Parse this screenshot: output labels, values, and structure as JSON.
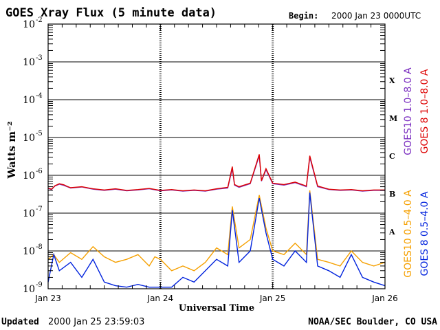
{
  "title": "GOES Xray Flux (5 minute data)",
  "begin_label": "Begin:",
  "begin_value": "2000 Jan 23 0000UTC",
  "updated_label": "Updated",
  "updated_value": "2000 Jan 25 23:59:03",
  "credit": "NOAA/SEC Boulder, CO USA",
  "colors": {
    "goes8_long": "#dd0000",
    "goes10_long": "#7b2fc0",
    "goes10_short": "#f5a000",
    "goes8_short": "#0022dd",
    "frame": "#000000"
  },
  "chart_data": {
    "type": "line",
    "title": "GOES Xray Flux (5 minute data)",
    "xlabel": "Universal Time",
    "ylabel": "Watts m⁻²",
    "yscale": "log",
    "ylim": [
      1e-09,
      0.01
    ],
    "xlim": [
      0,
      3
    ],
    "x_ticks": [
      {
        "x": 0,
        "label": "Jan 23"
      },
      {
        "x": 1,
        "label": "Jan 24"
      },
      {
        "x": 2,
        "label": "Jan 25"
      },
      {
        "x": 3,
        "label": "Jan 26"
      }
    ],
    "y_ticks": [
      {
        "base": "10",
        "exp": "-2",
        "value": 0.01
      },
      {
        "base": "10",
        "exp": "-3",
        "value": 0.001
      },
      {
        "base": "10",
        "exp": "-4",
        "value": 0.0001
      },
      {
        "base": "10",
        "exp": "-5",
        "value": 1e-05
      },
      {
        "base": "10",
        "exp": "-6",
        "value": 1e-06
      },
      {
        "base": "10",
        "exp": "-7",
        "value": 1e-07
      },
      {
        "base": "10",
        "exp": "-8",
        "value": 1e-08
      },
      {
        "base": "10",
        "exp": "-9",
        "value": 1e-09
      }
    ],
    "flare_classes": [
      {
        "label": "X",
        "value": 0.00032
      },
      {
        "label": "M",
        "value": 3.2e-05
      },
      {
        "label": "C",
        "value": 3.2e-06
      },
      {
        "label": "B",
        "value": 3.2e-07
      },
      {
        "label": "A",
        "value": 3.2e-08
      }
    ],
    "grid": true,
    "legend_position": "right",
    "series": [
      {
        "name": "GOES10 1.0–8.0 A",
        "color": "#7b2fc0",
        "x": [
          0,
          0.03,
          0.06,
          0.1,
          0.14,
          0.17,
          0.2,
          0.3,
          0.4,
          0.5,
          0.6,
          0.7,
          0.8,
          0.9,
          1.0,
          1.1,
          1.2,
          1.3,
          1.4,
          1.5,
          1.6,
          1.64,
          1.66,
          1.7,
          1.8,
          1.88,
          1.9,
          1.94,
          2.0,
          2.1,
          2.2,
          2.3,
          2.33,
          2.4,
          2.5,
          2.6,
          2.7,
          2.8,
          2.9,
          3.0
        ],
        "y": [
          4.5e-07,
          4.2e-07,
          5.2e-07,
          5.8e-07,
          5.4e-07,
          5e-07,
          4.6e-07,
          4.9e-07,
          4.3e-07,
          4e-07,
          4.3e-07,
          3.9e-07,
          4.1e-07,
          4.4e-07,
          3.9e-07,
          4.1e-07,
          3.8e-07,
          4e-07,
          3.8e-07,
          4.3e-07,
          4.6e-07,
          1.5e-06,
          5.5e-07,
          4.8e-07,
          6e-07,
          3.3e-06,
          7e-07,
          1.4e-06,
          6e-07,
          5.5e-07,
          6.4e-07,
          5e-07,
          3e-06,
          5e-07,
          4.2e-07,
          4e-07,
          4.1e-07,
          3.8e-07,
          4e-07,
          4e-07
        ]
      },
      {
        "name": "GOES 8 1.0–8.0 A",
        "color": "#dd0000",
        "x": [
          0,
          0.03,
          0.06,
          0.1,
          0.14,
          0.17,
          0.2,
          0.3,
          0.4,
          0.5,
          0.6,
          0.7,
          0.8,
          0.9,
          1.0,
          1.1,
          1.2,
          1.3,
          1.4,
          1.5,
          1.6,
          1.64,
          1.66,
          1.7,
          1.8,
          1.88,
          1.9,
          1.94,
          2.0,
          2.1,
          2.2,
          2.3,
          2.33,
          2.4,
          2.5,
          2.6,
          2.7,
          2.8,
          2.9,
          3.0
        ],
        "y": [
          4.6e-07,
          4.3e-07,
          5.3e-07,
          6e-07,
          5.6e-07,
          5.1e-07,
          4.7e-07,
          5e-07,
          4.4e-07,
          4.1e-07,
          4.4e-07,
          4e-07,
          4.2e-07,
          4.5e-07,
          4e-07,
          4.2e-07,
          3.9e-07,
          4.1e-07,
          3.9e-07,
          4.4e-07,
          4.8e-07,
          1.7e-06,
          5.7e-07,
          5e-07,
          6.2e-07,
          3.6e-06,
          7.2e-07,
          1.5e-06,
          6.2e-07,
          5.7e-07,
          6.6e-07,
          5.2e-07,
          3.3e-06,
          5.2e-07,
          4.3e-07,
          4.1e-07,
          4.2e-07,
          3.9e-07,
          4.1e-07,
          4.1e-07
        ]
      },
      {
        "name": "GOES10 0.5–4.0 A",
        "color": "#f5a000",
        "x": [
          0,
          0.05,
          0.1,
          0.2,
          0.3,
          0.4,
          0.5,
          0.6,
          0.7,
          0.8,
          0.9,
          0.95,
          1.0,
          1.1,
          1.2,
          1.3,
          1.4,
          1.5,
          1.6,
          1.64,
          1.7,
          1.8,
          1.88,
          1.94,
          2.0,
          2.1,
          2.2,
          2.3,
          2.33,
          2.4,
          2.5,
          2.6,
          2.7,
          2.8,
          2.9,
          3.0
        ],
        "y": [
          6e-09,
          8e-09,
          5e-09,
          9e-09,
          6e-09,
          1.3e-08,
          7e-09,
          5e-09,
          6e-09,
          8e-09,
          4e-09,
          7e-09,
          6e-09,
          3e-09,
          4e-09,
          3e-09,
          5e-09,
          1.2e-08,
          8e-09,
          1.5e-07,
          1.2e-08,
          2e-08,
          3e-07,
          4e-08,
          1e-08,
          8e-09,
          1.6e-08,
          8e-09,
          4e-07,
          6e-09,
          5e-09,
          4e-09,
          1e-08,
          5e-09,
          4e-09,
          5e-09
        ]
      },
      {
        "name": "GOES 8 0.5–4.0 A",
        "color": "#0022dd",
        "x": [
          0,
          0.05,
          0.1,
          0.2,
          0.3,
          0.4,
          0.5,
          0.6,
          0.7,
          0.8,
          0.9,
          0.95,
          1.0,
          1.1,
          1.2,
          1.3,
          1.4,
          1.5,
          1.6,
          1.64,
          1.7,
          1.8,
          1.88,
          1.94,
          2.0,
          2.1,
          2.2,
          2.3,
          2.33,
          2.4,
          2.5,
          2.6,
          2.7,
          2.8,
          2.9,
          3.0
        ],
        "y": [
          1.5e-09,
          8e-09,
          3e-09,
          5e-09,
          2e-09,
          6e-09,
          1.5e-09,
          1.2e-09,
          1.1e-09,
          1.3e-09,
          1.1e-09,
          1.1e-09,
          1.1e-09,
          1.1e-09,
          2e-09,
          1.5e-09,
          3e-09,
          6e-09,
          4e-09,
          1.2e-07,
          5e-09,
          1e-08,
          2.5e-07,
          3e-08,
          6e-09,
          4e-09,
          1e-08,
          5e-09,
          3.5e-07,
          4e-09,
          3e-09,
          2e-09,
          8e-09,
          2e-09,
          1.5e-09,
          1.2e-09
        ]
      }
    ]
  }
}
